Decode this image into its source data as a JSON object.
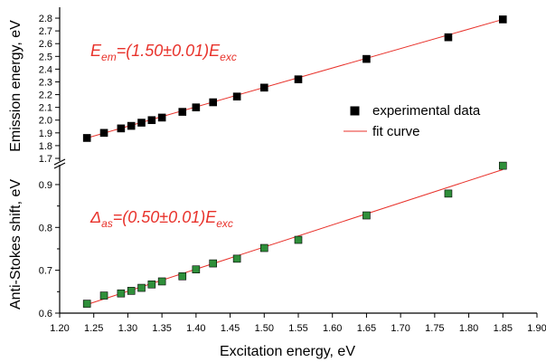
{
  "chart_data": [
    {
      "type": "scatter",
      "panel": "top",
      "ylabel": "Emission energy, eV",
      "ylim": [
        1.7,
        2.85
      ],
      "yticks": [
        "1.7",
        "1.8",
        "1.9",
        "2.0",
        "2.1",
        "2.2",
        "2.3",
        "2.4",
        "2.5",
        "2.6",
        "2.7",
        "2.8"
      ],
      "series": [
        {
          "name": "experimental data",
          "marker": "square",
          "color": "#000000",
          "x": [
            1.24,
            1.265,
            1.29,
            1.305,
            1.32,
            1.335,
            1.35,
            1.38,
            1.4,
            1.425,
            1.46,
            1.5,
            1.55,
            1.65,
            1.77,
            1.85
          ],
          "y": [
            1.86,
            1.9,
            1.935,
            1.955,
            1.98,
            2.0,
            2.02,
            2.065,
            2.1,
            2.14,
            2.185,
            2.255,
            2.32,
            2.48,
            2.65,
            2.79
          ]
        },
        {
          "name": "fit curve",
          "kind": "line",
          "color": "#e8322b",
          "x": [
            1.24,
            1.85
          ],
          "y": [
            1.86,
            2.79
          ]
        }
      ],
      "annotation": {
        "main": "E",
        "sub": "em",
        "mid": "=(1.50±0.01)E",
        "sub2": "exc",
        "color": "#e8322b"
      },
      "legend": {
        "placement": "right-middle",
        "entries": [
          "experimental data",
          "fit curve"
        ]
      }
    },
    {
      "type": "scatter",
      "panel": "bottom",
      "ylabel": "Anti-Stokes shift, eV",
      "xlabel": "Excitation energy, eV",
      "xlim": [
        1.2,
        1.9
      ],
      "xticks": [
        "1.20",
        "1.25",
        "1.30",
        "1.35",
        "1.40",
        "1.45",
        "1.50",
        "1.55",
        "1.60",
        "1.65",
        "1.70",
        "1.75",
        "1.80",
        "1.85",
        "1.90"
      ],
      "ylim": [
        0.6,
        0.94
      ],
      "yticks": [
        "0.6",
        "0.7",
        "0.8",
        "0.9"
      ],
      "series": [
        {
          "name": "",
          "marker": "square",
          "color": "#2f8f3a",
          "x": [
            1.24,
            1.265,
            1.29,
            1.305,
            1.32,
            1.335,
            1.35,
            1.38,
            1.4,
            1.425,
            1.46,
            1.5,
            1.55,
            1.65,
            1.77,
            1.85
          ],
          "y": [
            0.622,
            0.641,
            0.646,
            0.652,
            0.659,
            0.667,
            0.674,
            0.686,
            0.702,
            0.716,
            0.727,
            0.752,
            0.771,
            0.828,
            0.879,
            0.944
          ]
        },
        {
          "name": "",
          "kind": "line",
          "color": "#e8322b",
          "x": [
            1.24,
            1.85
          ],
          "y": [
            0.62,
            0.935
          ]
        }
      ],
      "annotation": {
        "main": "Δ",
        "sub": "as",
        "mid": "=(0.50±0.01)E",
        "sub2": "exc",
        "color": "#e8322b"
      }
    }
  ]
}
